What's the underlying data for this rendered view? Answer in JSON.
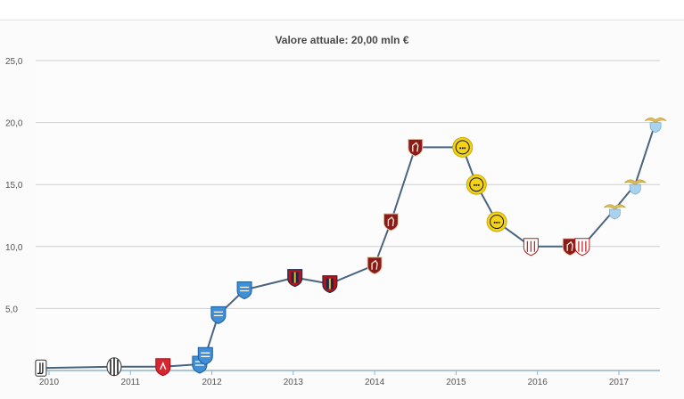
{
  "header": {
    "title": "Valore attuale: 20,00 mln €"
  },
  "chart_data": {
    "type": "line",
    "title": "Valore attuale: 20,00 mln €",
    "xlabel": "",
    "ylabel": "",
    "ylim": [
      0,
      25
    ],
    "xlim": [
      2010,
      2017.5
    ],
    "grid": true,
    "y_ticks": [
      "25,0",
      "20,0",
      "15,0",
      "10,0",
      "5,0"
    ],
    "x_ticks": [
      "2010",
      "2011",
      "2012",
      "2013",
      "2014",
      "2015",
      "2016",
      "2017"
    ],
    "x_tick_values": [
      2010,
      2011,
      2012,
      2013,
      2014,
      2015,
      2016,
      2017
    ],
    "colors": {
      "line": "#4a6480",
      "grid": "#cfcfcf",
      "axis": "#8fb3d0"
    },
    "points": [
      {
        "x": 2009.9,
        "y": 0.2,
        "club": "juventus",
        "badge": "juve"
      },
      {
        "x": 2010.8,
        "y": 0.3,
        "club": "juventus",
        "badge": "stripes"
      },
      {
        "x": 2011.4,
        "y": 0.3,
        "club": "grosseto",
        "badge": "red"
      },
      {
        "x": 2011.85,
        "y": 0.5,
        "club": "pescara",
        "badge": "blue"
      },
      {
        "x": 2011.92,
        "y": 1.2,
        "club": "pescara",
        "badge": "blue"
      },
      {
        "x": 2012.08,
        "y": 4.5,
        "club": "pescara",
        "badge": "blue"
      },
      {
        "x": 2012.4,
        "y": 6.5,
        "club": "pescara",
        "badge": "blue"
      },
      {
        "x": 2013.02,
        "y": 7.5,
        "club": "genoa",
        "badge": "genoa"
      },
      {
        "x": 2013.45,
        "y": 7.0,
        "club": "genoa",
        "badge": "genoa"
      },
      {
        "x": 2014.0,
        "y": 8.5,
        "club": "torino",
        "badge": "torino"
      },
      {
        "x": 2014.2,
        "y": 12.0,
        "club": "torino",
        "badge": "torino"
      },
      {
        "x": 2014.5,
        "y": 18.0,
        "club": "torino",
        "badge": "torino"
      },
      {
        "x": 2015.08,
        "y": 18.0,
        "club": "borussia dortmund",
        "badge": "bvb"
      },
      {
        "x": 2015.25,
        "y": 15.0,
        "club": "borussia dortmund",
        "badge": "bvb"
      },
      {
        "x": 2015.5,
        "y": 12.0,
        "club": "borussia dortmund",
        "badge": "bvb"
      },
      {
        "x": 2015.92,
        "y": 10.0,
        "club": "sevilla",
        "badge": "sevilla"
      },
      {
        "x": 2016.4,
        "y": 10.0,
        "club": "torino",
        "badge": "torino"
      },
      {
        "x": 2016.55,
        "y": 10.0,
        "club": "sevilla",
        "badge": "sevilla"
      },
      {
        "x": 2016.95,
        "y": 13.0,
        "club": "lazio",
        "badge": "lazio"
      },
      {
        "x": 2017.2,
        "y": 15.0,
        "club": "lazio",
        "badge": "lazio"
      },
      {
        "x": 2017.45,
        "y": 20.0,
        "club": "lazio",
        "badge": "lazio"
      }
    ]
  }
}
